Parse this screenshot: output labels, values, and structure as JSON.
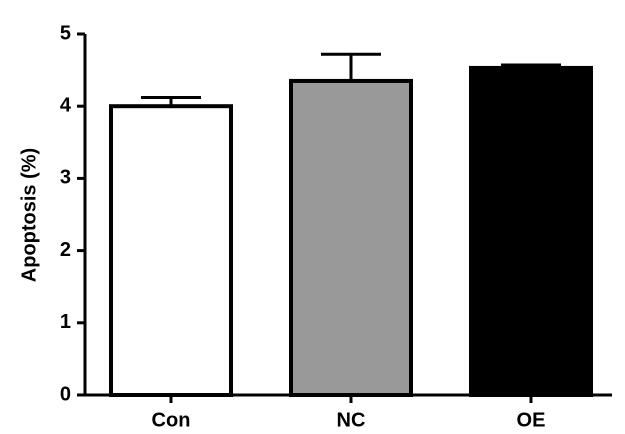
{
  "chart_data": {
    "type": "bar",
    "y_label": "Apoptosis (%)",
    "categories": [
      "Con",
      "NC",
      "OE"
    ],
    "values": [
      4.0,
      4.35,
      4.53
    ],
    "errors": [
      0.12,
      0.37,
      0.04
    ],
    "colors": [
      "#ffffff",
      "#999999",
      "#000000"
    ],
    "ylim": [
      0,
      5
    ],
    "yticks": [
      0,
      1,
      2,
      3,
      4,
      5
    ]
  }
}
